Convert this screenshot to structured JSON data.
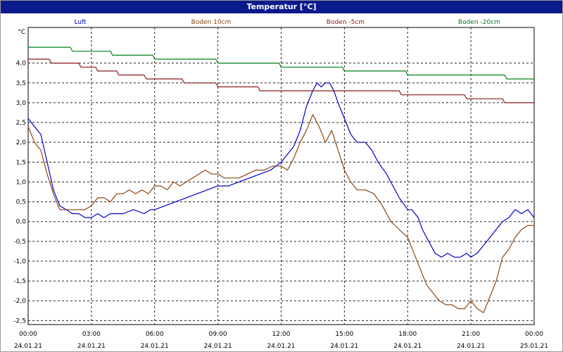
{
  "window": {
    "title": "Temperatur [°C]"
  },
  "chart_data": {
    "type": "line",
    "title": "Temperatur [°C]",
    "ylabel": "°C",
    "xlabel": "",
    "ylim": [
      -2.6,
      4.9
    ],
    "xlim": [
      0,
      24
    ],
    "grid": true,
    "legend": "top",
    "y_ticks": [
      "-2,5",
      "-2,0",
      "-1,5",
      "-1,0",
      "-0,5",
      "0,0",
      "0,5",
      "1,0",
      "1,5",
      "2,0",
      "2,5",
      "3,0",
      "3,5",
      "4,0"
    ],
    "x_ticks": [
      {
        "time": "00:00",
        "date": "24.01.21"
      },
      {
        "time": "03:00",
        "date": "24.01.21"
      },
      {
        "time": "06:00",
        "date": "24.01.21"
      },
      {
        "time": "09:00",
        "date": "24.01.21"
      },
      {
        "time": "12:00",
        "date": "24.01.21"
      },
      {
        "time": "15:00",
        "date": "24.01.21"
      },
      {
        "time": "18:00",
        "date": "24.01.21"
      },
      {
        "time": "21:00",
        "date": "24.01.21"
      },
      {
        "time": "00:00",
        "date": "25.01.21"
      }
    ],
    "series": [
      {
        "name": "Luft",
        "color": "#0000cc",
        "x": [
          0,
          0.3,
          0.6,
          0.9,
          1.2,
          1.5,
          1.8,
          2.1,
          2.4,
          2.7,
          3.0,
          3.3,
          3.6,
          3.9,
          4.5,
          5.0,
          5.5,
          5.8,
          6.0,
          6.5,
          7.0,
          7.5,
          8.0,
          8.5,
          9.0,
          9.5,
          10.0,
          10.5,
          11.0,
          11.5,
          12.0,
          12.3,
          12.6,
          12.9,
          13.2,
          13.5,
          13.7,
          13.9,
          14.1,
          14.3,
          14.5,
          14.7,
          15.0,
          15.3,
          15.6,
          16.0,
          16.3,
          16.6,
          17.0,
          17.3,
          17.6,
          18.0,
          18.2,
          18.5,
          18.7,
          19.0,
          19.3,
          19.6,
          19.9,
          20.2,
          20.5,
          20.8,
          21.0,
          21.3,
          21.6,
          21.9,
          22.2,
          22.5,
          22.8,
          23.1,
          23.4,
          23.7,
          24.0
        ],
        "y": [
          2.6,
          2.4,
          2.2,
          1.5,
          0.8,
          0.4,
          0.3,
          0.2,
          0.2,
          0.1,
          0.1,
          0.2,
          0.1,
          0.2,
          0.2,
          0.3,
          0.2,
          0.3,
          0.3,
          0.4,
          0.5,
          0.6,
          0.7,
          0.8,
          0.9,
          0.9,
          1.0,
          1.1,
          1.2,
          1.3,
          1.5,
          1.7,
          1.9,
          2.3,
          2.9,
          3.3,
          3.5,
          3.4,
          3.5,
          3.5,
          3.3,
          3.0,
          2.6,
          2.2,
          2.0,
          2.0,
          1.8,
          1.5,
          1.2,
          0.9,
          0.6,
          0.3,
          0.3,
          0.1,
          -0.2,
          -0.5,
          -0.8,
          -0.9,
          -0.8,
          -0.9,
          -0.9,
          -0.8,
          -0.9,
          -0.8,
          -0.6,
          -0.4,
          -0.2,
          0.0,
          0.1,
          0.3,
          0.2,
          0.3,
          0.1
        ]
      },
      {
        "name": "Boden 10cm",
        "color": "#8b4513",
        "x": [
          0,
          0.3,
          0.6,
          0.9,
          1.2,
          1.5,
          1.8,
          2.1,
          2.4,
          2.7,
          3.0,
          3.3,
          3.6,
          3.9,
          4.2,
          4.5,
          4.8,
          5.1,
          5.4,
          5.7,
          6.0,
          6.3,
          6.6,
          6.9,
          7.2,
          7.5,
          7.8,
          8.1,
          8.4,
          8.7,
          9.0,
          9.3,
          9.6,
          10.0,
          10.4,
          10.8,
          11.2,
          11.6,
          12.0,
          12.3,
          12.6,
          12.9,
          13.2,
          13.5,
          13.8,
          14.1,
          14.4,
          14.7,
          15.0,
          15.3,
          15.6,
          16.0,
          16.4,
          16.8,
          17.2,
          17.6,
          18.0,
          18.3,
          18.6,
          18.9,
          19.2,
          19.5,
          19.8,
          20.1,
          20.4,
          20.7,
          21.0,
          21.3,
          21.6,
          21.9,
          22.2,
          22.5,
          22.8,
          23.1,
          23.4,
          23.7,
          24.0
        ],
        "y": [
          2.4,
          2.0,
          1.8,
          1.2,
          0.7,
          0.3,
          0.3,
          0.3,
          0.3,
          0.3,
          0.4,
          0.6,
          0.6,
          0.5,
          0.7,
          0.7,
          0.8,
          0.7,
          0.8,
          0.7,
          0.9,
          0.9,
          0.8,
          1.0,
          0.9,
          1.0,
          1.1,
          1.2,
          1.3,
          1.2,
          1.2,
          1.1,
          1.1,
          1.1,
          1.2,
          1.3,
          1.3,
          1.4,
          1.4,
          1.3,
          1.6,
          2.0,
          2.3,
          2.7,
          2.4,
          2.0,
          2.3,
          1.8,
          1.3,
          1.0,
          0.8,
          0.8,
          0.7,
          0.4,
          0.0,
          -0.2,
          -0.4,
          -0.8,
          -1.2,
          -1.6,
          -1.8,
          -2.0,
          -2.1,
          -2.1,
          -2.2,
          -2.2,
          -2.0,
          -2.2,
          -2.3,
          -1.9,
          -1.5,
          -0.9,
          -0.7,
          -0.4,
          -0.2,
          -0.1,
          -0.1
        ]
      },
      {
        "name": "Boden -5cm",
        "color": "#8b1a1a",
        "x": [
          0,
          1.0,
          1.1,
          2.4,
          2.5,
          3.2,
          3.3,
          4.2,
          4.3,
          5.5,
          5.6,
          7.3,
          7.4,
          8.9,
          9.0,
          10.9,
          11.0,
          17.6,
          17.7,
          19.2,
          19.3,
          20.7,
          20.8,
          22.5,
          22.6,
          24.0
        ],
        "y": [
          4.1,
          4.1,
          4.0,
          4.0,
          3.9,
          3.9,
          3.8,
          3.8,
          3.7,
          3.7,
          3.6,
          3.6,
          3.5,
          3.5,
          3.4,
          3.4,
          3.3,
          3.3,
          3.2,
          3.2,
          3.2,
          3.2,
          3.1,
          3.1,
          3.0,
          3.0
        ]
      },
      {
        "name": "Boden -20cm",
        "color": "#00801a",
        "x": [
          0,
          2.0,
          2.1,
          3.9,
          4.0,
          5.9,
          6.0,
          8.9,
          9.0,
          11.9,
          12.0,
          14.9,
          15.0,
          17.9,
          18.0,
          22.6,
          22.7,
          24.0
        ],
        "y": [
          4.4,
          4.4,
          4.3,
          4.3,
          4.2,
          4.2,
          4.1,
          4.1,
          4.0,
          4.0,
          3.9,
          3.9,
          3.8,
          3.8,
          3.7,
          3.7,
          3.6,
          3.6
        ]
      }
    ]
  }
}
